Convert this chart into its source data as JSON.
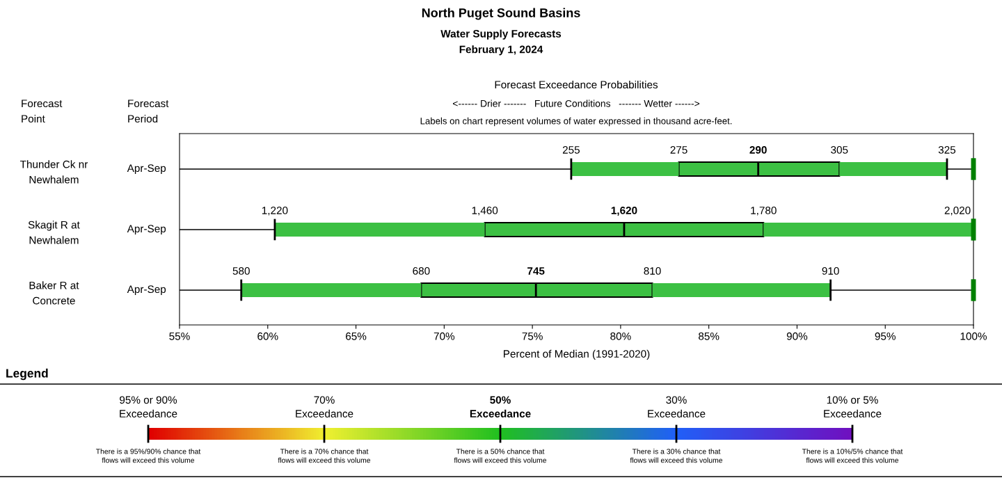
{
  "chart_data": [
    {
      "type": "box",
      "orientation": "horizontal",
      "title": "North Puget Sound Basins",
      "subtitle": "Water Supply Forecasts\nFebruary 1, 2024",
      "xlabel": "Percent of Median (1991-2020)",
      "categories": [
        "Thunder Ck nr\nNewhalem",
        "Skagit R at\nNewhalem",
        "Baker R at\nConcrete"
      ],
      "color": "#3cc043",
      "boxes": [
        {
          "low": 77.2,
          "q1": 83.3,
          "median": 87.8,
          "q3": 92.4,
          "high": 98.5
        },
        {
          "low": 60.4,
          "q1": 72.3,
          "median": 80.2,
          "q3": 88.1,
          "high": 100
        },
        {
          "low": 58.5,
          "q1": 68.7,
          "median": 75.2,
          "q3": 81.8,
          "high": 91.9
        }
      ],
      "xlim": [
        55,
        100
      ],
      "xticks": [
        {
          "value": 55,
          "label": "55%"
        },
        {
          "value": 60,
          "label": "60%"
        },
        {
          "value": 65,
          "label": "65%"
        },
        {
          "value": 70,
          "label": "70%"
        },
        {
          "value": 75,
          "label": "75%"
        },
        {
          "value": 80,
          "label": "80%"
        },
        {
          "value": 85,
          "label": "85%"
        },
        {
          "value": 90,
          "label": "90%"
        },
        {
          "value": 95,
          "label": "95%"
        },
        {
          "value": 100,
          "label": "100%"
        }
      ],
      "grid": "y",
      "ref_lines": [
        {
          "axis": "x",
          "value": 100,
          "color": "#008000"
        }
      ],
      "annotations": [
        "Forecast\nPoint",
        "Forecast\nPeriod",
        "Apr-Sep",
        "Apr-Sep",
        "Apr-Sep",
        "Forecast Exceedance Probabilities",
        "<------ Drier -------   Future Conditions   ------- Wetter ------>",
        "Labels on chart represent volumes of water expressed in thousand acre-feet.",
        {
          "text": "255",
          "x": 77.2,
          "y": "Thunder Ck nr\nNewhalem"
        },
        {
          "text": "275",
          "x": 83.3,
          "y": "Thunder Ck nr\nNewhalem"
        },
        {
          "text": "290",
          "x": 87.8,
          "y": "Thunder Ck nr\nNewhalem"
        },
        {
          "text": "305",
          "x": 92.4,
          "y": "Thunder Ck nr\nNewhalem"
        },
        {
          "text": "325",
          "x": 98.5,
          "y": "Thunder Ck nr\nNewhalem"
        },
        {
          "text": "1,220",
          "x": 60.4,
          "y": "Skagit R at\nNewhalem"
        },
        {
          "text": "1,460",
          "x": 72.3,
          "y": "Skagit R at\nNewhalem"
        },
        {
          "text": "1,620",
          "x": 80.2,
          "y": "Skagit R at\nNewhalem"
        },
        {
          "text": "1,780",
          "x": 88.1,
          "y": "Skagit R at\nNewhalem"
        },
        {
          "text": "2,020",
          "x": 100,
          "y": "Skagit R at\nNewhalem"
        },
        {
          "text": "580",
          "x": 58.5,
          "y": "Baker R at\nConcrete"
        },
        {
          "text": "680",
          "x": 68.7,
          "y": "Baker R at\nConcrete"
        },
        {
          "text": "745",
          "x": 75.2,
          "y": "Baker R at\nConcrete"
        },
        {
          "text": "810",
          "x": 81.8,
          "y": "Baker R at\nConcrete"
        },
        {
          "text": "910",
          "x": 91.9,
          "y": "Baker R at\nConcrete"
        }
      ]
    },
    {
      "type": "other",
      "annotations": [
        "Legend",
        "95% or 90%\nExceedance",
        "70%\nExceedance",
        "50%\nExceedance",
        "30%\nExceedance",
        "10% or 5%\nExceedance",
        "There is a 95%/90% chance that\nflows will exceed this volume",
        "There is a 70% chance that\nflows will exceed this volume",
        "There is a 50% chance that\nflows will exceed this volume",
        "There is a 30% chance that\nflows will exceed this volume",
        "There is a 10%/5% chance that\nflows will exceed this volume"
      ]
    }
  ]
}
